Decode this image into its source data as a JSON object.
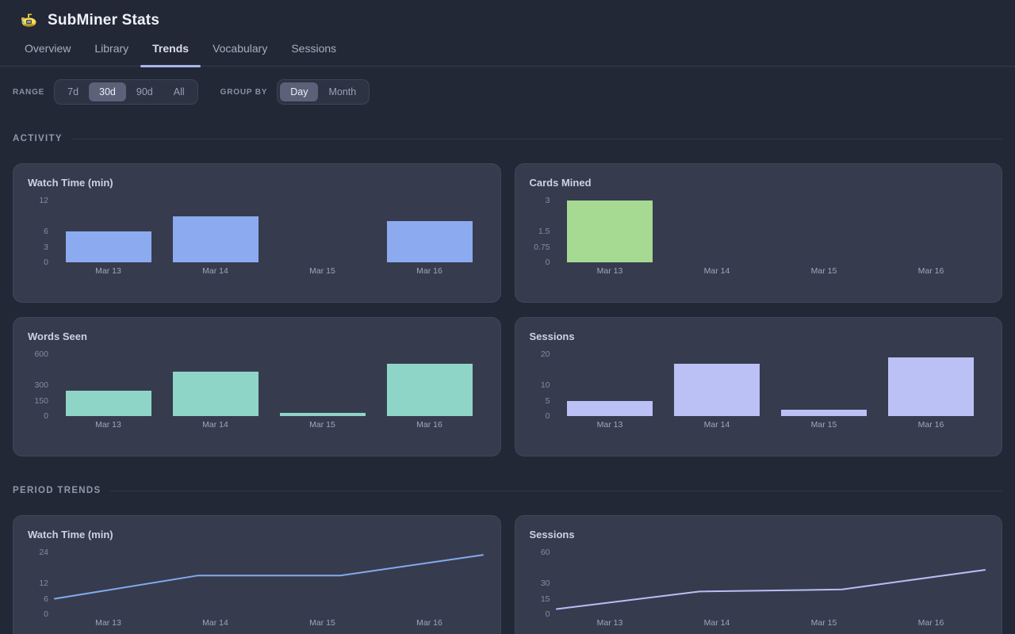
{
  "app": {
    "title": "SubMiner Stats",
    "logo": "submarine-icon"
  },
  "tabs": [
    {
      "label": "Overview",
      "active": false
    },
    {
      "label": "Library",
      "active": false
    },
    {
      "label": "Trends",
      "active": true
    },
    {
      "label": "Vocabulary",
      "active": false
    },
    {
      "label": "Sessions",
      "active": false
    }
  ],
  "controls": {
    "range": {
      "label": "RANGE",
      "options": [
        "7d",
        "30d",
        "90d",
        "All"
      ],
      "selected": "30d"
    },
    "group_by": {
      "label": "GROUP BY",
      "options": [
        "Day",
        "Month"
      ],
      "selected": "Day"
    }
  },
  "sections": {
    "activity": "ACTIVITY",
    "period_trends": "PERIOD TRENDS"
  },
  "colors": {
    "page_bg": "#232836",
    "card_bg": "#363c4e",
    "tab_underline": "#a9b6ea",
    "watch_time_bar": "#8caaf0",
    "cards_mined_bar": "#a6da92",
    "words_seen_bar": "#8ed5c8",
    "sessions_bar": "#bbc0f5",
    "watch_time_line": "#85a9ee",
    "sessions_line": "#b9bef4"
  },
  "chart_data": [
    {
      "type": "bar",
      "section": "ACTIVITY",
      "title": "Watch Time (min)",
      "categories": [
        "Mar 13",
        "Mar 14",
        "Mar 15",
        "Mar 16"
      ],
      "values": [
        6,
        9,
        0,
        8
      ],
      "ylim": [
        0,
        12
      ],
      "yticks": [
        12,
        6,
        3,
        0
      ],
      "color": "#8caaf0",
      "grid": false,
      "legend": "none"
    },
    {
      "type": "bar",
      "section": "ACTIVITY",
      "title": "Cards Mined",
      "categories": [
        "Mar 13",
        "Mar 14",
        "Mar 15",
        "Mar 16"
      ],
      "values": [
        3,
        0,
        0,
        0
      ],
      "ylim": [
        0,
        3
      ],
      "yticks": [
        3,
        1.5,
        0.75,
        0
      ],
      "color": "#a6da92",
      "grid": false,
      "legend": "none"
    },
    {
      "type": "bar",
      "section": "ACTIVITY",
      "title": "Words Seen",
      "categories": [
        "Mar 13",
        "Mar 14",
        "Mar 15",
        "Mar 16"
      ],
      "values": [
        250,
        430,
        30,
        510
      ],
      "ylim": [
        0,
        600
      ],
      "yticks": [
        600,
        300,
        150,
        0
      ],
      "color": "#8ed5c8",
      "grid": false,
      "legend": "none"
    },
    {
      "type": "bar",
      "section": "ACTIVITY",
      "title": "Sessions",
      "categories": [
        "Mar 13",
        "Mar 14",
        "Mar 15",
        "Mar 16"
      ],
      "values": [
        5,
        17,
        2,
        19
      ],
      "ylim": [
        0,
        20
      ],
      "yticks": [
        20,
        10,
        5,
        0
      ],
      "color": "#bbc0f5",
      "grid": false,
      "legend": "none"
    },
    {
      "type": "line",
      "section": "PERIOD TRENDS",
      "title": "Watch Time (min)",
      "categories": [
        "Mar 13",
        "Mar 14",
        "Mar 15",
        "Mar 16"
      ],
      "values": [
        6,
        15,
        15,
        23
      ],
      "ylim": [
        0,
        24
      ],
      "yticks": [
        24,
        12,
        6,
        0
      ],
      "color": "#85a9ee",
      "grid": false,
      "legend": "none"
    },
    {
      "type": "line",
      "section": "PERIOD TRENDS",
      "title": "Sessions",
      "categories": [
        "Mar 13",
        "Mar 14",
        "Mar 15",
        "Mar 16"
      ],
      "values": [
        5,
        22,
        24,
        43
      ],
      "ylim": [
        0,
        60
      ],
      "yticks": [
        60,
        30,
        15,
        0
      ],
      "color": "#b9bef4",
      "grid": false,
      "legend": "none"
    }
  ]
}
